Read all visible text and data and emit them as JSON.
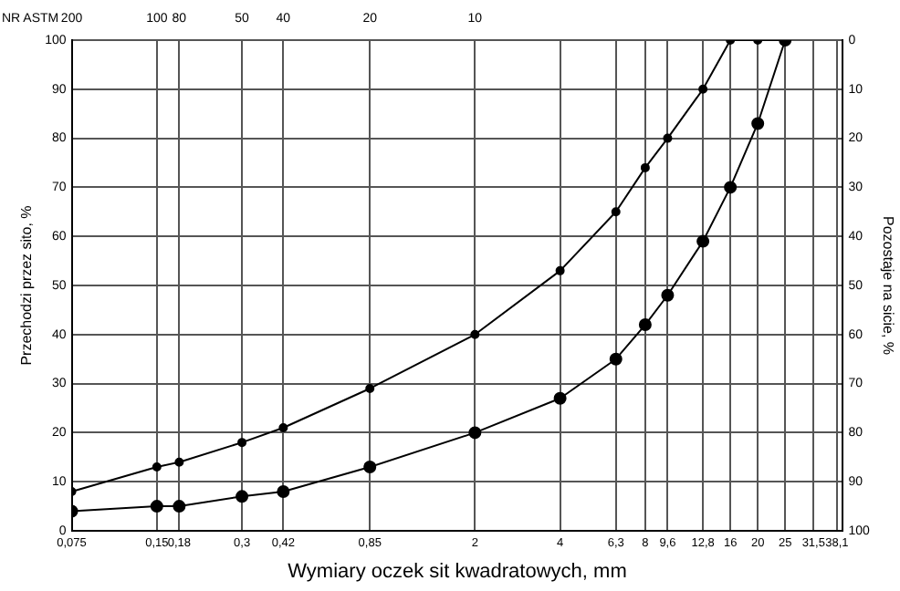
{
  "chart_data": {
    "type": "line",
    "xlabel": "Wymiary oczek sit kwadratowych, mm",
    "ylabel": "Przechodzi przez sito, %",
    "y2label": "Pozostaje na sicie, %",
    "log": "x",
    "grid": true,
    "marker": "circle",
    "line_style": "solid",
    "annotations": [
      "NR ASTM",
      "200",
      "100",
      "80",
      "50",
      "40",
      "20",
      "10"
    ],
    "xlim": [
      0.075,
      40
    ],
    "xticks": [
      {
        "value": 0.075,
        "label": "0,075"
      },
      {
        "value": 0.15,
        "label": "0,15"
      },
      {
        "value": 0.18,
        "label": "0,18"
      },
      {
        "value": 0.3,
        "label": "0,3"
      },
      {
        "value": 0.42,
        "label": "0,42"
      },
      {
        "value": 0.85,
        "label": "0,85"
      },
      2,
      4,
      {
        "value": 6.3,
        "label": "6,3"
      },
      8,
      {
        "value": 9.6,
        "label": "9,6"
      },
      {
        "value": 12.8,
        "label": "12,8"
      },
      16,
      20,
      25,
      {
        "value": 31.5,
        "label": "31,5"
      },
      {
        "value": 38.1,
        "label": "38,1"
      }
    ],
    "ylim": [
      0,
      100
    ],
    "yticks": [
      0,
      10,
      20,
      30,
      40,
      50,
      60,
      70,
      80,
      90,
      100
    ],
    "y2lim": [
      100,
      0
    ],
    "y2ticks": [
      0,
      10,
      20,
      30,
      40,
      50,
      60,
      70,
      80,
      90,
      100
    ],
    "series": [
      {
        "color": "#000000",
        "x": [
          0.075,
          0.15,
          0.18,
          0.3,
          0.42,
          0.85,
          2,
          4,
          6.3,
          8,
          9.6,
          12.8,
          16,
          20,
          25
        ],
        "values": [
          8,
          13,
          14,
          18,
          21,
          29,
          40,
          53,
          65,
          74,
          80,
          90,
          100,
          100,
          100
        ]
      },
      {
        "color": "#000000",
        "x": [
          0.075,
          0.15,
          0.18,
          0.3,
          0.42,
          0.85,
          2,
          4,
          6.3,
          8,
          9.6,
          12.8,
          16,
          20,
          25
        ],
        "values": [
          4,
          5,
          5,
          7,
          8,
          13,
          20,
          27,
          35,
          42,
          48,
          59,
          70,
          83,
          100
        ]
      }
    ]
  }
}
